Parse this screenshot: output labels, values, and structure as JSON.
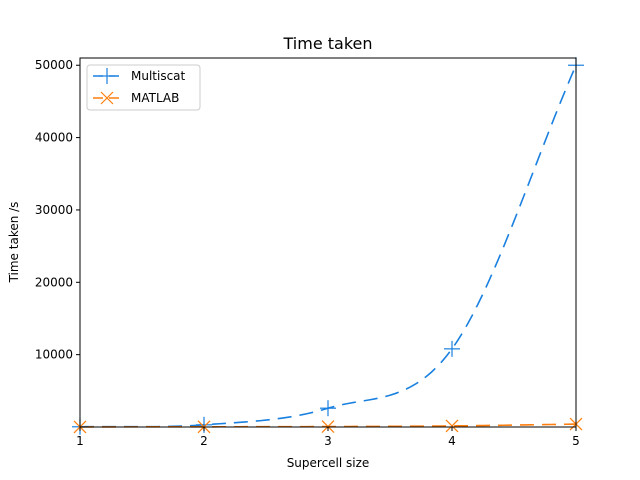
{
  "chart_data": {
    "type": "line",
    "title": "Time taken",
    "xlabel": "Supercell size",
    "ylabel": "Time taken /s",
    "xlim": [
      1,
      5
    ],
    "ylim": [
      0,
      51000
    ],
    "xticks": [
      "1",
      "2",
      "3",
      "4",
      "5"
    ],
    "yticks": [
      "10000",
      "20000",
      "30000",
      "40000",
      "50000"
    ],
    "grid": false,
    "legend": "top-left",
    "x": [
      1,
      2,
      3,
      4,
      5
    ],
    "series": [
      {
        "name": "Multiscat",
        "values": [
          30,
          300,
          2600,
          10800,
          50000
        ],
        "color": "#1f77b4",
        "line_color": "#1a80e0",
        "marker": "plus",
        "line_style": "dashed"
      },
      {
        "name": "MATLAB",
        "values": [
          10,
          30,
          60,
          150,
          400
        ],
        "color": "#ff7f0e",
        "marker": "x",
        "line_style": "dashed"
      }
    ]
  }
}
